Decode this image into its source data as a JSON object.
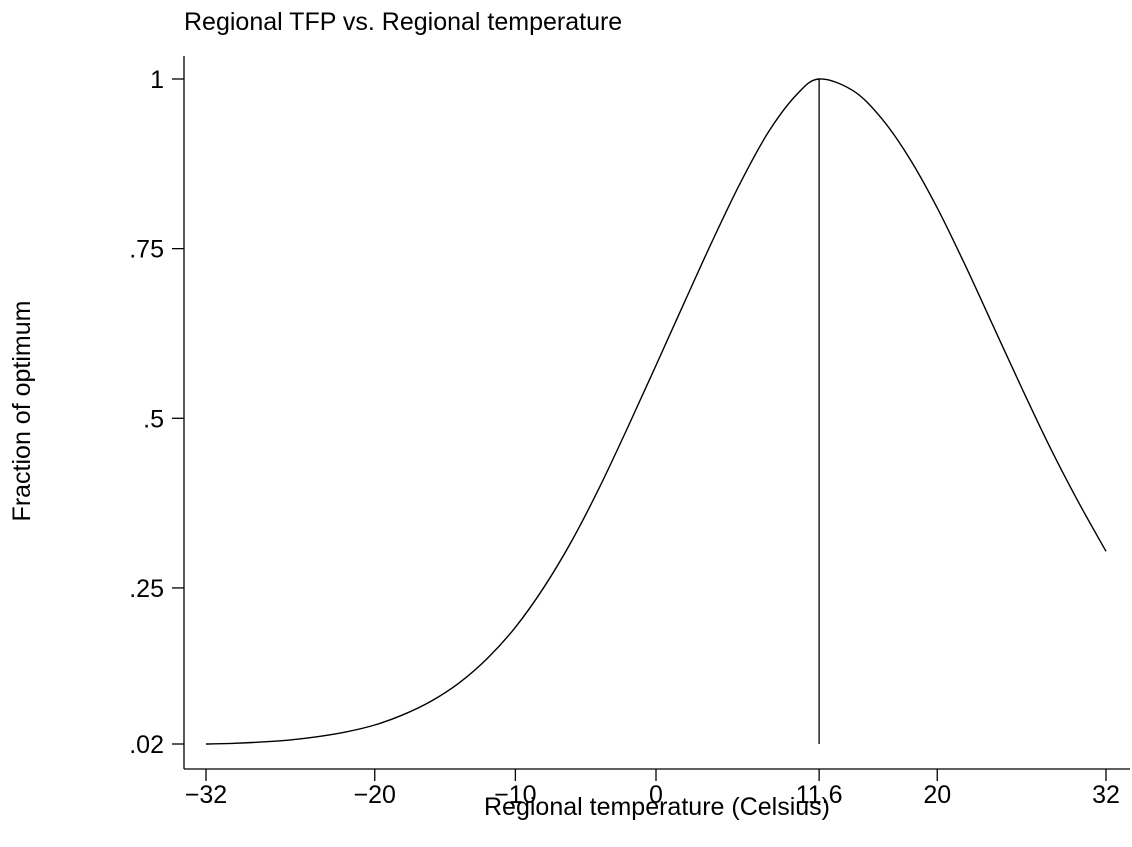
{
  "chart_data": {
    "type": "line",
    "title": "Regional TFP vs. Regional temperature",
    "xlabel": "Regional temperature (Celsius)",
    "ylabel": "Fraction of optimum",
    "xlim": [
      -32,
      32
    ],
    "ylim": [
      0.02,
      1
    ],
    "x_ticks": [
      -32,
      -20,
      -10,
      0,
      11.6,
      20,
      32
    ],
    "x_tick_labels": [
      "−32",
      "−20",
      "−10",
      "0",
      "11.6",
      "20",
      "32"
    ],
    "y_ticks": [
      0.02,
      0.25,
      0.5,
      0.75,
      1
    ],
    "y_tick_labels": [
      ".02",
      ".25",
      ".5",
      ".75",
      "1"
    ],
    "grid": false,
    "series": [
      {
        "color": "#000000",
        "x": [
          -32,
          -30,
          -28,
          -26,
          -24,
          -22,
          -20,
          -18,
          -16,
          -14,
          -12,
          -10,
          -8,
          -6,
          -4,
          -2,
          0,
          2,
          4,
          6,
          8,
          10,
          11.6,
          14,
          16,
          18,
          20,
          22,
          24,
          26,
          28,
          30,
          32
        ],
        "y": [
          0.02,
          0.021,
          0.023,
          0.026,
          0.031,
          0.038,
          0.048,
          0.063,
          0.083,
          0.11,
          0.146,
          0.192,
          0.25,
          0.319,
          0.399,
          0.487,
          0.578,
          0.67,
          0.761,
          0.847,
          0.922,
          0.977,
          1.0,
          0.983,
          0.943,
          0.884,
          0.81,
          0.725,
          0.635,
          0.545,
          0.458,
          0.378,
          0.304
        ]
      }
    ],
    "reference_line": {
      "x": 11.6,
      "y_from": 0.02,
      "y_to": 1,
      "color": "#000000"
    }
  }
}
